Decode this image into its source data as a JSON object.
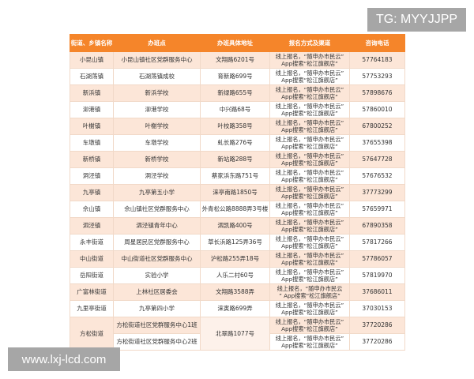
{
  "header": [
    "街道、乡镇名称",
    "办班点",
    "办班具体地址",
    "报名方式及渠道",
    "咨询电话"
  ],
  "colors": {
    "header_bg": "#f5852a",
    "stripe": "#fce6d8"
  },
  "rows": [
    {
      "town": "小昆山镇",
      "site": "小昆山镇社区党群服务中心",
      "address": "文翔路6201号",
      "reg1": "线上报名，“随申办市民云”",
      "reg2": "App搜索“松江旗舰店”",
      "phone": "57764183"
    },
    {
      "town": "石湖荡镇",
      "site": "石湖荡镇成校",
      "address": "育新路699号",
      "reg1": "线上报名，“随申办市民云”",
      "reg2": "App搜索“松江旗舰店”",
      "phone": "57753293"
    },
    {
      "town": "新浜镇",
      "site": "新浜学校",
      "address": "新绿路655号",
      "reg1": "线上报名，“随申办市民云”",
      "reg2": "App搜索“松江旗舰店”",
      "phone": "57898676"
    },
    {
      "town": "泖港镇",
      "site": "泖港学校",
      "address": "中兴路68号",
      "reg1": "线上报名，“随申办市民云”",
      "reg2": "App搜索“松江旗舰店”",
      "phone": "57860010"
    },
    {
      "town": "叶榭镇",
      "site": "叶榭学校",
      "address": "叶校路358号",
      "reg1": "线上报名，“随申办市民云”",
      "reg2": "App搜索“松江旗舰店”",
      "phone": "67800252"
    },
    {
      "town": "车墩镇",
      "site": "车墩学校",
      "address": "虬长路276号",
      "reg1": "线上报名，“随申办市民云”",
      "reg2": "App搜索“松江旗舰店”",
      "phone": "37655398"
    },
    {
      "town": "新桥镇",
      "site": "新桥学校",
      "address": "新站路288号",
      "reg1": "线上报名，“随申办市民云”",
      "reg2": "App搜索“松江旗舰店”",
      "phone": "57647728"
    },
    {
      "town": "洞泾镇",
      "site": "洞泾学校",
      "address": "蔡家浜东路751号",
      "reg1": "线上报名，“随申办市民云”",
      "reg2": "App搜索“松江旗舰店”",
      "phone": "57676532"
    },
    {
      "town": "九亭镇",
      "site": "九亭第五小学",
      "address": "涞亭南路1850号",
      "reg1": "线上报名，“随申办市民云”",
      "reg2": "App搜索“松江旗舰店”",
      "phone": "37773299"
    },
    {
      "town": "佘山镇",
      "site": "佘山镇社区党群服务中心",
      "address": "外青松公路8888弄3号楼",
      "reg1": "线上报名，“随申办市民云”",
      "reg2": "App搜索“松江旗舰店”",
      "phone": "57659971"
    },
    {
      "town": "泗泾镇",
      "site": "泗泾镇青年中心",
      "address": "泗凯路400号",
      "reg1": "线上报名，“随申办市民云”",
      "reg2": "App搜索“松江旗舰店”",
      "phone": "67890358"
    },
    {
      "town": "永丰街道",
      "site": "周星居民区党群服务中心",
      "address": "草长浜路125弄36号",
      "reg1": "线上报名，“随申办市民云”",
      "reg2": "App搜索“松江旗舰店”",
      "phone": "57817266"
    },
    {
      "town": "中山街道",
      "site": "中山街道社区党群服务中心",
      "address": "沪松路255弄18号",
      "reg1": "线上报名，“随申办市民云”",
      "reg2": "App搜索“松江旗舰店”",
      "phone": "57786057"
    },
    {
      "town": "岳阳街道",
      "site": "实验小学",
      "address": "人乐二村60号",
      "reg1": "线上报名，“随申办市民云”",
      "reg2": "App搜索“松江旗舰店”",
      "phone": "57819970"
    },
    {
      "town": "广富林街道",
      "site": "上林社区居委会",
      "address": "文翔路3588弄",
      "reg1": "线上报名，“随申办市民云",
      "reg2": "” App搜索“松江旗舰店”",
      "phone": "37686011"
    },
    {
      "town": "九里亭街道",
      "site": "九亭第四小学",
      "address": "涞寅路699弄",
      "reg1": "线上报名，“随申办市民云”",
      "reg2": "App搜索“松江旗舰店”",
      "phone": "37030153"
    }
  ],
  "fangsong": {
    "town": "方松街道",
    "address": "北翠路1077号",
    "sub": [
      {
        "site": "方松街道社区党群服务中心1班",
        "reg1": "线上报名，“随申办市民云”",
        "reg2": "App搜索“松江旗舰店”",
        "phone": "37720286"
      },
      {
        "site": "方松街道社区党群服务中心2班",
        "reg1": "线上报名，“随申办市民云”",
        "reg2": "App搜索“松江旗舰店”",
        "phone": "37720286"
      }
    ]
  },
  "watermarks": {
    "top": "TG: MYYJJPP",
    "bottom": "www.lxj-lcd.com"
  }
}
